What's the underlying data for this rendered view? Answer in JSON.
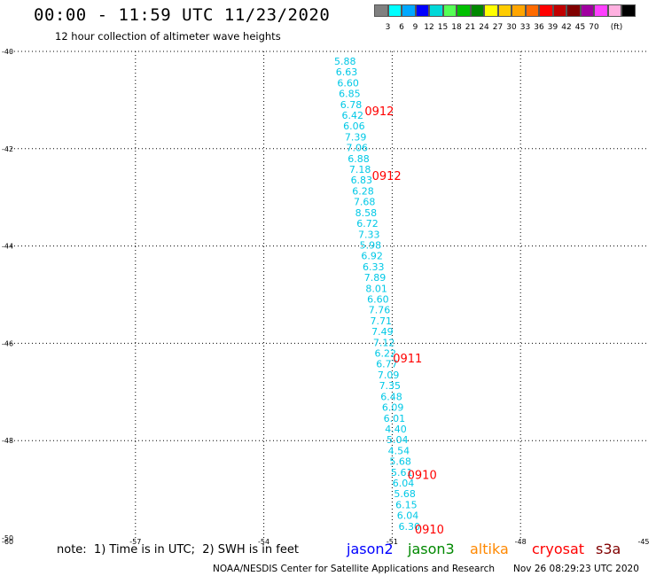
{
  "header": {
    "title": "00:00 - 11:59 UTC 11/23/2020",
    "subtitle": "12 hour collection of altimeter wave heights"
  },
  "colorbar": {
    "colors": [
      "#808080",
      "#00ffff",
      "#00a8ff",
      "#0000ff",
      "#00d8d8",
      "#55ff55",
      "#00c000",
      "#008800",
      "#ffff00",
      "#ffcc00",
      "#ffa500",
      "#ff6a00",
      "#ff0000",
      "#c00000",
      "#800000",
      "#a000a0",
      "#ff40ff",
      "#ffb0e0",
      "#000000"
    ],
    "labels": [
      "3",
      "6",
      "9",
      "12",
      "15",
      "18",
      "21",
      "24",
      "27",
      "30",
      "33",
      "36",
      "39",
      "42",
      "45",
      "70",
      "(ft)"
    ]
  },
  "footer": {
    "note": "note:  1) Time is in UTC;  2) SWH is in feet",
    "legend": [
      {
        "name": "jason2",
        "color": "#0000ff"
      },
      {
        "name": "jason3",
        "color": "#008800"
      },
      {
        "name": "altika",
        "color": "#ff8800"
      },
      {
        "name": "cryosat",
        "color": "#ff0000"
      },
      {
        "name": "s3a",
        "color": "#800000"
      }
    ],
    "credit": "NOAA/NESDIS Center for Satellite Applications and Research",
    "timestamp": "Nov 26 08:29:23 UTC 2020"
  },
  "chart_data": {
    "type": "scatter",
    "xlim": [
      -60,
      -45
    ],
    "ylim": [
      -50,
      -40
    ],
    "x_ticks": [
      -60,
      -57,
      -54,
      -51,
      -48,
      -45
    ],
    "x_tick_labels": [
      "-60",
      "-57",
      "-54",
      "-51",
      "-48",
      "-45"
    ],
    "y_ticks": [
      -50,
      -48,
      -46,
      -44,
      -42,
      -40
    ],
    "y_tick_labels": [
      "-50",
      "-48",
      "-46",
      "-44",
      "-42",
      "-40"
    ],
    "grid": true,
    "track": {
      "color": "#00c8e6",
      "start": {
        "lon": -52.1,
        "lat": -40.2
      },
      "end": {
        "lon": -50.6,
        "lat": -49.76
      },
      "values": [
        "5.88",
        "6.63",
        "6.60",
        "6.85",
        "6.78",
        "6.42",
        "6.06",
        "7.39",
        "7.06",
        "6.88",
        "7.18",
        "6.83",
        "6.28",
        "7.68",
        "8.58",
        "6.72",
        "7.33",
        "5.98",
        "6.92",
        "6.33",
        "7.89",
        "8.01",
        "6.60",
        "7.76",
        "7.71",
        "7.49",
        "7.12",
        "6.22",
        "6.77",
        "7.09",
        "7.35",
        "6.48",
        "6.09",
        "6.01",
        "4.40",
        "5.04",
        "4.54",
        "5.68",
        "5.61",
        "6.04",
        "5.68",
        "6.15",
        "6.04",
        "6.30"
      ]
    },
    "time_labels": [
      {
        "text": "0912",
        "lon": -51.3,
        "lat": -41.22,
        "color": "#ff0000"
      },
      {
        "text": "0912",
        "lon": -51.13,
        "lat": -42.55,
        "color": "#ff0000"
      },
      {
        "text": "0911",
        "lon": -50.64,
        "lat": -46.3,
        "color": "#ff0000"
      },
      {
        "text": "0910",
        "lon": -50.3,
        "lat": -48.7,
        "color": "#ff0000"
      },
      {
        "text": "0910",
        "lon": -50.13,
        "lat": -49.82,
        "color": "#ff0000"
      }
    ]
  }
}
